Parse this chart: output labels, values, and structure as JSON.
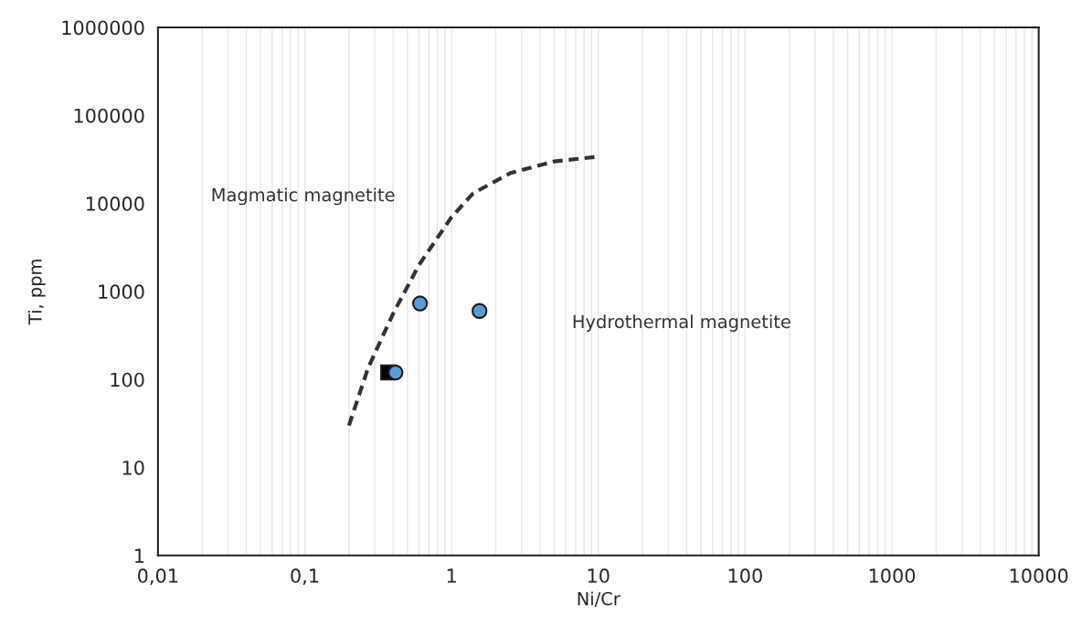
{
  "chart_data": {
    "type": "scatter",
    "xlabel": "Ni/Cr",
    "ylabel": "Ti, ppm",
    "log": "xy",
    "grid": "x",
    "xlim": [
      0.01,
      10000
    ],
    "ylim": [
      1,
      1000000
    ],
    "xticks": [
      {
        "value": 0.01,
        "label": "0,01"
      },
      {
        "value": 0.1,
        "label": "0,1"
      },
      1,
      10,
      100,
      1000,
      10000
    ],
    "yticks": [
      1,
      10,
      100,
      1000,
      10000,
      100000,
      1000000
    ],
    "annotations": [
      "Magmatic magnetite",
      "Hydrothermal magnetite"
    ],
    "series": [
      {
        "type": "line",
        "line_style": "dashed",
        "marker": "none",
        "color": "#333333",
        "x": [
          0.2,
          0.27,
          0.4,
          0.6,
          1,
          1.4,
          2.5,
          5,
          10
        ],
        "values": [
          30,
          135,
          560,
          2000,
          7000,
          13000,
          22000,
          30000,
          34000
        ]
      },
      {
        "type": "scatter",
        "marker": "square",
        "color": "#000000",
        "x": [
          0.37
        ],
        "values": [
          120
        ]
      },
      {
        "type": "scatter",
        "marker": "circle",
        "color": "#5b9bd5",
        "x": [
          0.61,
          1.55,
          0.415
        ],
        "values": [
          730,
          600,
          120
        ]
      }
    ]
  }
}
